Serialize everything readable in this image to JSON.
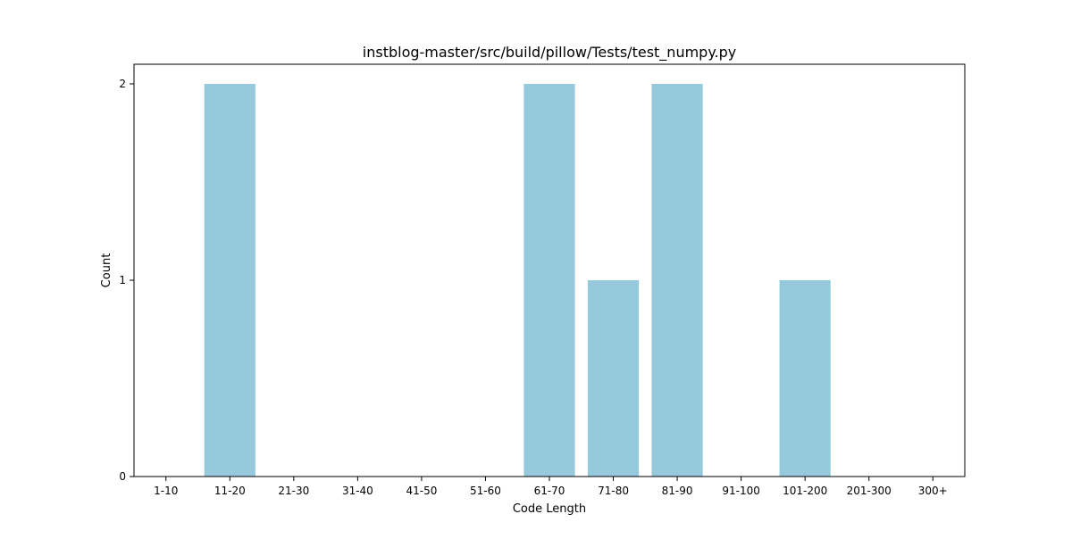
{
  "chart_data": {
    "type": "bar",
    "title": "instblog-master/src/build/pillow/Tests/test_numpy.py",
    "xlabel": "Code Length",
    "ylabel": "Count",
    "categories": [
      "1-10",
      "11-20",
      "21-30",
      "31-40",
      "41-50",
      "51-60",
      "61-70",
      "71-80",
      "81-90",
      "91-100",
      "101-200",
      "201-300",
      "300+"
    ],
    "values": [
      0,
      2,
      0,
      0,
      0,
      0,
      2,
      1,
      2,
      0,
      1,
      0,
      0
    ],
    "yticks": [
      0,
      1,
      2
    ],
    "ylim": [
      0,
      2.1
    ],
    "grid": false,
    "legend": "none",
    "bar_color": "#96c9dc"
  }
}
